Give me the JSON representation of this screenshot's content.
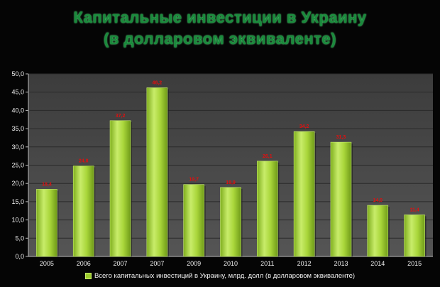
{
  "chart_data": {
    "type": "bar",
    "title": [
      "Капитальные инвестиции в Украину",
      "(в долларовом эквиваленте)"
    ],
    "categories": [
      "2005",
      "2006",
      "2007",
      "2007",
      "2009",
      "2010",
      "2011",
      "2012",
      "2013",
      "2014",
      "2015"
    ],
    "series": [
      {
        "name": "Всего капитальных инвестиций в Украину, млрд. долл (в долларовом эквиваленте)",
        "values": [
          18.4,
          24.8,
          37.2,
          46.2,
          19.7,
          18.9,
          26.1,
          34.2,
          31.3,
          14.0,
          11.4
        ],
        "labels": [
          "18,4",
          "24,8",
          "37,2",
          "46,2",
          "19,7",
          "18,9",
          "26,1",
          "34,2",
          "31,3",
          "14,0",
          "11,4"
        ]
      }
    ],
    "ylim": [
      0,
      50
    ],
    "yticks": [
      "0,0",
      "5,0",
      "10,0",
      "15,0",
      "20,0",
      "25,0",
      "30,0",
      "35,0",
      "40,0",
      "45,0",
      "50,0"
    ],
    "grid": true,
    "legend_position": "bottom",
    "colors": {
      "bar": "#9ccc2c",
      "bar_highlight": "#d2f07a",
      "plot_background": "#4a4a4a",
      "data_label": "#e01010",
      "title": "#1a8a3c"
    }
  }
}
